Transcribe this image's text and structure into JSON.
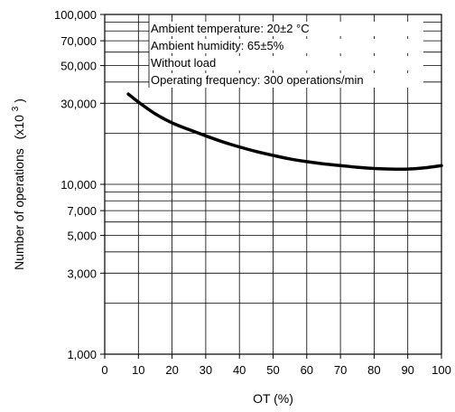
{
  "chart_data": {
    "type": "line",
    "xlabel": "OT (%)",
    "ylabel": "Number of operations",
    "ylabel_unit_base": "(x10",
    "ylabel_unit_exp": "3",
    "ylabel_unit_close": ")",
    "x_scale": "linear",
    "y_scale": "log",
    "xlim": [
      0,
      100
    ],
    "ylim": [
      1000,
      100000
    ],
    "grid": true,
    "x_ticks": [
      0,
      10,
      20,
      30,
      40,
      50,
      60,
      70,
      80,
      90,
      100
    ],
    "x_tick_labels": [
      "0",
      "10",
      "20",
      "30",
      "40",
      "50",
      "60",
      "70",
      "80",
      "90",
      "100"
    ],
    "y_ticks": [
      1000,
      3000,
      5000,
      7000,
      10000,
      30000,
      50000,
      70000,
      100000
    ],
    "y_tick_labels": [
      "1,000",
      "3,000",
      "5,000",
      "7,000",
      "10,000",
      "30,000",
      "50,000",
      "70,000",
      "100,000"
    ],
    "annotations": [
      "Ambient temperature: 20±2 °C",
      "Ambient humidity: 65±5%",
      "Without load",
      "Operating frequency: 300 operations/min"
    ],
    "series": [
      {
        "x": [
          7,
          10,
          15,
          20,
          25,
          30,
          35,
          40,
          45,
          50,
          55,
          60,
          65,
          70,
          75,
          80,
          85,
          90,
          95,
          100
        ],
        "values": [
          34000,
          30500,
          26000,
          23000,
          21000,
          19300,
          17800,
          16600,
          15600,
          14800,
          14100,
          13600,
          13200,
          12900,
          12600,
          12400,
          12300,
          12300,
          12500,
          12900
        ]
      }
    ]
  }
}
